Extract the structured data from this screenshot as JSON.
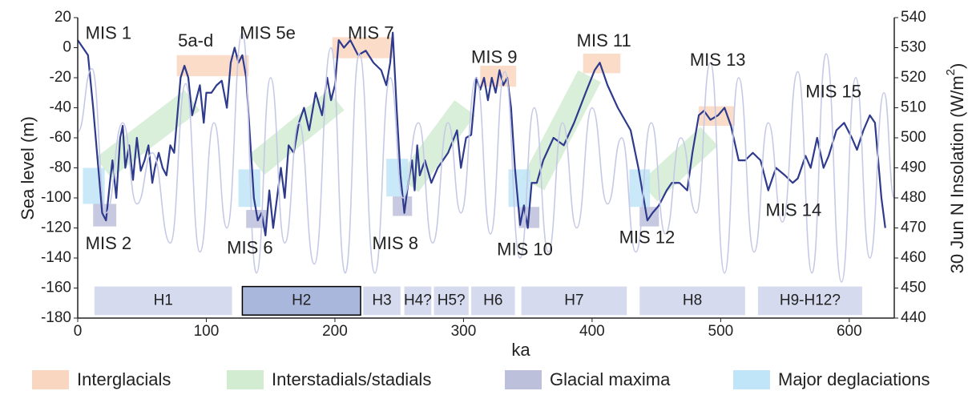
{
  "chart_data": {
    "type": "line",
    "xlabel": "ka",
    "ylabel": "Sea level (m)",
    "y2label": [
      "30 Jun N Insolation (W/m",
      "2",
      ")"
    ],
    "xlim": [
      0,
      635
    ],
    "ylim": [
      -180,
      20
    ],
    "y2lim": [
      440,
      540
    ],
    "xticks": [
      0,
      100,
      200,
      300,
      400,
      500,
      600
    ],
    "yticks": [
      20,
      0,
      -20,
      -40,
      -60,
      -80,
      -100,
      -120,
      -140,
      -160,
      -180
    ],
    "y2ticks": [
      440,
      450,
      460,
      470,
      480,
      490,
      500,
      510,
      520,
      530,
      540
    ],
    "series": [
      {
        "name": "Sea level",
        "color": "#2e3a8c",
        "x": [
          0,
          4,
          8,
          12,
          16,
          19,
          22,
          25,
          27,
          30,
          33,
          35,
          37,
          40,
          43,
          46,
          49,
          52,
          55,
          58,
          60,
          63,
          66,
          69,
          72,
          75,
          78,
          80,
          83,
          86,
          89,
          92,
          95,
          98,
          100,
          104,
          108,
          112,
          116,
          119,
          122,
          125,
          128,
          131,
          134,
          137,
          140,
          143,
          146,
          149,
          152,
          155,
          158,
          161,
          164,
          168,
          172,
          176,
          180,
          185,
          190,
          194,
          197,
          200,
          203,
          207,
          212,
          218,
          224,
          230,
          236,
          240,
          243,
          245,
          248,
          251,
          254,
          257,
          260,
          262,
          264,
          266,
          270,
          275,
          280,
          288,
          295,
          298,
          302,
          306,
          310,
          313,
          316,
          319,
          322,
          325,
          328,
          331,
          334,
          337,
          340,
          344,
          347,
          350,
          353,
          357,
          362,
          370,
          378,
          386,
          395,
          402,
          406,
          412,
          420,
          430,
          436,
          440,
          443,
          447,
          452,
          458,
          462,
          468,
          474,
          478,
          483,
          487,
          492,
          498,
          503,
          508,
          514,
          519,
          525,
          531,
          537,
          543,
          550,
          556,
          560,
          566,
          570,
          575,
          580,
          584,
          590,
          596,
          602,
          606,
          611,
          616,
          620,
          625,
          628
        ],
        "values": [
          5,
          0,
          -5,
          -40,
          -80,
          -110,
          -115,
          -90,
          -75,
          -100,
          -60,
          -52,
          -80,
          -65,
          -88,
          -60,
          -82,
          -75,
          -65,
          -90,
          -80,
          -70,
          -80,
          -85,
          -65,
          -70,
          -40,
          -20,
          -12,
          -20,
          -45,
          -35,
          -25,
          -50,
          -30,
          -30,
          -25,
          -22,
          -40,
          -10,
          0,
          -10,
          -5,
          -20,
          -60,
          -100,
          -115,
          -110,
          -125,
          -95,
          -120,
          -100,
          -80,
          -100,
          -65,
          -70,
          -50,
          -40,
          -55,
          -30,
          -45,
          -20,
          -35,
          -25,
          5,
          0,
          5,
          -5,
          -2,
          -10,
          -15,
          -25,
          -10,
          10,
          -40,
          -85,
          -110,
          -90,
          -75,
          -95,
          -65,
          -85,
          -75,
          -90,
          -80,
          -70,
          -55,
          -80,
          -60,
          -58,
          -20,
          -28,
          -20,
          -35,
          -20,
          -30,
          -15,
          -25,
          -20,
          -40,
          -80,
          -118,
          -105,
          -120,
          -90,
          -90,
          -75,
          -60,
          -65,
          -50,
          -30,
          -15,
          -10,
          -25,
          -40,
          -55,
          -80,
          -100,
          -115,
          -110,
          -105,
          -95,
          -90,
          -90,
          -95,
          -70,
          -45,
          -42,
          -48,
          -45,
          -40,
          -52,
          -75,
          -75,
          -70,
          -75,
          -95,
          -80,
          -85,
          -90,
          -87,
          -72,
          -80,
          -60,
          -80,
          -72,
          -55,
          -50,
          -60,
          -68,
          -55,
          -45,
          -50,
          -100,
          -120
        ]
      },
      {
        "name": "Insolation",
        "color": "#c5c9e6",
        "axis": "y2",
        "x": [
          0,
          11,
          22,
          35,
          46,
          58,
          72,
          84,
          95,
          106,
          116,
          128,
          139,
          150,
          161,
          172,
          184,
          197,
          208,
          219,
          231,
          243,
          253,
          265,
          276,
          288,
          298,
          310,
          321,
          332,
          344,
          355,
          366,
          377,
          388,
          400,
          412,
          423,
          434,
          446,
          457,
          469,
          481,
          492,
          503,
          514,
          526,
          537,
          548,
          560,
          571,
          582,
          594,
          605,
          616,
          627,
          635
        ],
        "values": [
          502,
          523,
          475,
          505,
          478,
          495,
          465,
          518,
          462,
          505,
          470,
          535,
          455,
          520,
          465,
          505,
          458,
          530,
          455,
          528,
          455,
          520,
          480,
          505,
          465,
          505,
          475,
          520,
          468,
          522,
          460,
          510,
          462,
          505,
          470,
          510,
          478,
          500,
          462,
          505,
          468,
          500,
          475,
          525,
          455,
          520,
          462,
          505,
          472,
          522,
          455,
          528,
          452,
          520,
          460,
          515,
          480
        ]
      }
    ],
    "regions": [
      {
        "name": "Interglacials",
        "color": "#f9d6c0",
        "boxes": [
          {
            "x": [
              77,
              133
            ],
            "y": [
              -19,
              -5
            ]
          },
          {
            "x": [
              198,
              245
            ],
            "y": [
              -7,
              7
            ]
          },
          {
            "x": [
              313,
              341
            ],
            "y": [
              -26,
              -12
            ]
          },
          {
            "x": [
              393,
              422
            ],
            "y": [
              -17,
              -4
            ]
          },
          {
            "x": [
              483,
              511
            ],
            "y": [
              -52,
              -39
            ]
          }
        ]
      },
      {
        "name": "Interstadials/stadials",
        "color": "#d2ecd2",
        "bands": [
          {
            "from": [
              20,
              -80
            ],
            "to": [
              89,
              -35
            ]
          },
          {
            "from": [
              139,
              -78
            ],
            "to": [
              201,
              -35
            ]
          },
          {
            "from": [
              257,
              -91
            ],
            "to": [
              301,
              -40
            ]
          },
          {
            "from": [
              354,
              -91
            ],
            "to": [
              398,
              -19
            ]
          },
          {
            "from": [
              444,
              -96
            ],
            "to": [
              491,
              -59
            ]
          }
        ]
      },
      {
        "name": "Glacial maxima",
        "color": "#bcc0da",
        "boxes": [
          {
            "x": [
              12,
              30
            ],
            "y": [
              -119,
              -104
            ]
          },
          {
            "x": [
              131,
              147
            ],
            "y": [
              -120,
              -108
            ]
          },
          {
            "x": [
              245,
              260
            ],
            "y": [
              -112,
              -99
            ]
          },
          {
            "x": [
              343,
              359
            ],
            "y": [
              -120,
              -106
            ]
          },
          {
            "x": [
              437,
              452
            ],
            "y": [
              -119,
              -106
            ]
          }
        ]
      },
      {
        "name": "Major deglaciations",
        "color": "#c0e5f8",
        "boxes": [
          {
            "x": [
              4,
              21
            ],
            "y": [
              -104,
              -80
            ]
          },
          {
            "x": [
              125,
              142
            ],
            "y": [
              -106,
              -81
            ]
          },
          {
            "x": [
              240,
              257
            ],
            "y": [
              -99,
              -74
            ]
          },
          {
            "x": [
              335,
              352
            ],
            "y": [
              -106,
              -81
            ]
          },
          {
            "x": [
              429,
              445
            ],
            "y": [
              -106,
              -81
            ]
          }
        ]
      }
    ],
    "annotations": [
      {
        "text": "MIS 1",
        "x": 6,
        "y": 9
      },
      {
        "text": "5a-d",
        "x": 78,
        "y": 4
      },
      {
        "text": "MIS 5e",
        "x": 126,
        "y": 9
      },
      {
        "text": "MIS 7",
        "x": 210,
        "y": 9
      },
      {
        "text": "MIS 9",
        "x": 306,
        "y": -7
      },
      {
        "text": "MIS 11",
        "x": 388,
        "y": 4
      },
      {
        "text": "MIS 13",
        "x": 476,
        "y": -9
      },
      {
        "text": "MIS 15",
        "x": 566,
        "y": -30
      },
      {
        "text": "MIS 2",
        "x": 6,
        "y": -131
      },
      {
        "text": "MIS 6",
        "x": 116,
        "y": -134
      },
      {
        "text": "MIS 8",
        "x": 229,
        "y": -131
      },
      {
        "text": "MIS 10",
        "x": 326,
        "y": -135
      },
      {
        "text": "MIS 12",
        "x": 421,
        "y": -127
      },
      {
        "text": "MIS 14",
        "x": 535,
        "y": -109
      }
    ],
    "periods": {
      "y": [
        -178,
        -159
      ],
      "color": "#d5daee",
      "highlight_color": "#a9b7dd",
      "items": [
        {
          "label": "H1",
          "x": [
            13,
            120
          ]
        },
        {
          "label": "H2",
          "x": [
            128,
            220
          ],
          "highlight": true
        },
        {
          "label": "H3",
          "x": [
            222,
            251
          ]
        },
        {
          "label": "H4?",
          "x": [
            254,
            275
          ]
        },
        {
          "label": "H5?",
          "x": [
            277,
            304
          ]
        },
        {
          "label": "H6",
          "x": [
            306,
            340
          ]
        },
        {
          "label": "H7",
          "x": [
            345,
            427
          ]
        },
        {
          "label": "H8",
          "x": [
            437,
            519
          ]
        },
        {
          "label": "H9-H12?",
          "x": [
            529,
            610
          ]
        }
      ]
    }
  }
}
